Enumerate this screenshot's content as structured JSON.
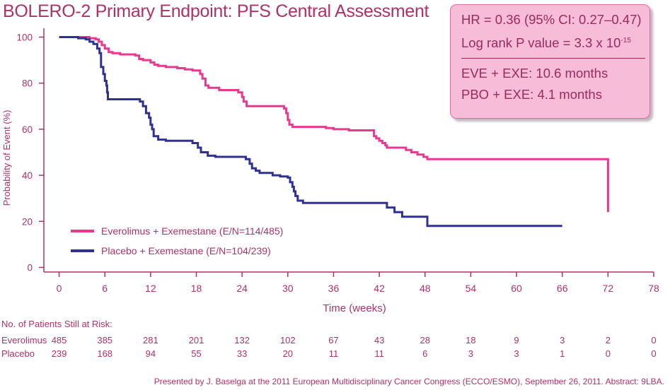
{
  "title": "BOLERO-2 Primary Endpoint: PFS Central Assessment",
  "stats": {
    "hr_line": "HR = 0.36 (95% CI: 0.27–0.47)",
    "pval_prefix": "Log rank P value = 3.3 x 10",
    "pval_exponent": "-15",
    "eve_line": "EVE + EXE: 10.6 months",
    "pbo_line": "PBO + EXE: 4.1 months"
  },
  "risk_table": {
    "header": "No. of Patients Still at Risk:",
    "rows": [
      {
        "label": "Everolimus",
        "values": [
          "485",
          "385",
          "281",
          "201",
          "132",
          "102",
          "67",
          "43",
          "28",
          "18",
          "9",
          "3",
          "2",
          "0"
        ]
      },
      {
        "label": "Placebo",
        "values": [
          "239",
          "168",
          "94",
          "55",
          "33",
          "20",
          "11",
          "11",
          "6",
          "3",
          "3",
          "1",
          "0",
          "0"
        ]
      }
    ]
  },
  "footer": "Presented by J. Baselga at the 2011 European Multidisciplinary Cancer Congress (ECCO/ESMO), September 26, 2011. Abstract: 9LBA.",
  "colors": {
    "everolimus": "#e8388f",
    "placebo": "#2e3192",
    "text": "#b0306a"
  },
  "chart_data": {
    "type": "line",
    "step": true,
    "xlabel": "Time (weeks)",
    "ylabel": "Probability of Event (%)",
    "xticks": [
      0,
      6,
      12,
      18,
      24,
      30,
      36,
      42,
      48,
      54,
      60,
      66,
      72,
      78
    ],
    "yticks": [
      0,
      20,
      40,
      60,
      80,
      100
    ],
    "xlim": [
      -2,
      78
    ],
    "ylim": [
      -2,
      102
    ],
    "legend_position": "bottom-left",
    "series": [
      {
        "name": "Everolimus + Exemestane (E/N=114/485)",
        "color": "#e8388f",
        "points": [
          [
            0,
            100
          ],
          [
            2,
            100
          ],
          [
            4,
            99.5
          ],
          [
            4.8,
            99
          ],
          [
            5.2,
            98
          ],
          [
            5.6,
            96.5
          ],
          [
            6,
            95
          ],
          [
            6.5,
            93.5
          ],
          [
            7,
            93
          ],
          [
            8,
            92.5
          ],
          [
            10,
            92
          ],
          [
            10.5,
            90.5
          ],
          [
            11,
            90
          ],
          [
            12,
            89
          ],
          [
            12.5,
            88
          ],
          [
            13,
            87.5
          ],
          [
            14,
            87
          ],
          [
            15.5,
            86.5
          ],
          [
            16.5,
            86
          ],
          [
            17.5,
            85.5
          ],
          [
            18.5,
            84
          ],
          [
            18.8,
            82
          ],
          [
            19.2,
            79
          ],
          [
            19.6,
            78
          ],
          [
            20,
            78
          ],
          [
            21,
            77
          ],
          [
            22.5,
            77
          ],
          [
            23.5,
            76
          ],
          [
            24,
            74
          ],
          [
            24.2,
            72
          ],
          [
            24.6,
            70
          ],
          [
            26,
            70
          ],
          [
            28,
            70
          ],
          [
            29.5,
            69
          ],
          [
            29.8,
            67
          ],
          [
            30,
            64
          ],
          [
            30.2,
            62
          ],
          [
            30.6,
            61
          ],
          [
            32,
            61
          ],
          [
            35,
            60.5
          ],
          [
            36,
            60
          ],
          [
            38,
            59.5
          ],
          [
            41,
            59.5
          ],
          [
            41.3,
            57
          ],
          [
            41.6,
            56
          ],
          [
            42,
            55
          ],
          [
            42.4,
            54
          ],
          [
            42.8,
            53
          ],
          [
            43,
            52
          ],
          [
            45.5,
            51
          ],
          [
            46.2,
            50
          ],
          [
            47,
            49
          ],
          [
            47.8,
            48
          ],
          [
            48.3,
            47
          ],
          [
            49,
            47
          ],
          [
            55,
            47
          ],
          [
            62,
            47
          ],
          [
            70,
            47
          ],
          [
            72,
            47
          ],
          [
            72,
            24
          ]
        ]
      },
      {
        "name": "Placebo + Exemestane (E/N=104/239)",
        "color": "#2e3192",
        "points": [
          [
            0,
            100
          ],
          [
            2.5,
            99.5
          ],
          [
            3.5,
            99
          ],
          [
            4,
            98
          ],
          [
            4.5,
            97
          ],
          [
            5,
            95
          ],
          [
            5.3,
            93
          ],
          [
            5.5,
            87
          ],
          [
            5.8,
            84
          ],
          [
            6,
            81
          ],
          [
            6.2,
            79
          ],
          [
            6.3,
            76
          ],
          [
            6.4,
            73
          ],
          [
            9,
            73
          ],
          [
            10.6,
            72
          ],
          [
            11,
            70
          ],
          [
            11.4,
            67
          ],
          [
            11.8,
            65
          ],
          [
            12,
            62
          ],
          [
            12.2,
            60
          ],
          [
            12.4,
            57
          ],
          [
            13,
            55.5
          ],
          [
            14,
            55
          ],
          [
            16,
            55
          ],
          [
            17.5,
            54
          ],
          [
            18.2,
            52
          ],
          [
            18.6,
            50
          ],
          [
            19.5,
            48.5
          ],
          [
            20.5,
            48
          ],
          [
            23,
            48
          ],
          [
            24,
            48
          ],
          [
            24.5,
            47
          ],
          [
            25,
            45
          ],
          [
            25.3,
            43
          ],
          [
            25.8,
            42
          ],
          [
            26.3,
            41
          ],
          [
            28,
            40
          ],
          [
            29,
            39.5
          ],
          [
            30,
            39
          ],
          [
            30.3,
            37
          ],
          [
            30.6,
            35
          ],
          [
            30.8,
            33
          ],
          [
            31,
            31
          ],
          [
            31.3,
            29
          ],
          [
            32,
            28
          ],
          [
            40,
            28
          ],
          [
            42,
            28
          ],
          [
            43,
            26
          ],
          [
            44,
            24
          ],
          [
            45,
            22
          ],
          [
            46,
            22
          ],
          [
            48,
            22
          ],
          [
            48.3,
            18
          ],
          [
            50,
            18
          ],
          [
            60,
            18
          ],
          [
            66,
            18
          ]
        ]
      }
    ]
  }
}
